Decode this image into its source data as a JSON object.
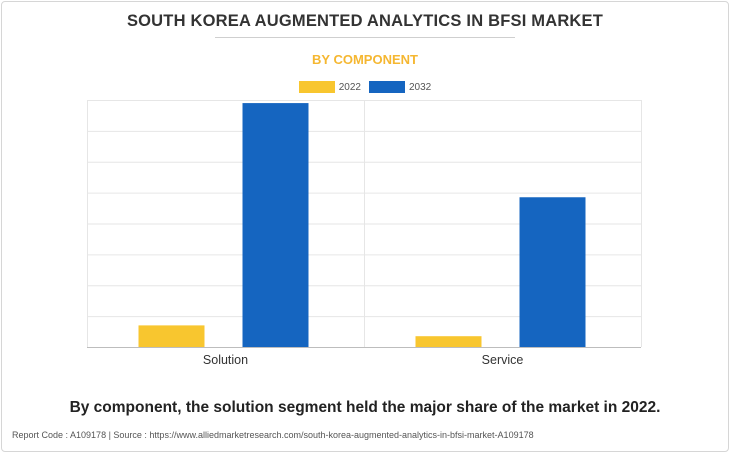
{
  "header": {
    "title": "SOUTH KOREA AUGMENTED ANALYTICS IN BFSI MARKET",
    "subtitle": "BY COMPONENT"
  },
  "chart_data": {
    "type": "bar",
    "categories": [
      "Solution",
      "Service"
    ],
    "series": [
      {
        "name": "2022",
        "color": "#f8c62f",
        "values": [
          7,
          3.5
        ]
      },
      {
        "name": "2032",
        "color": "#1565c0",
        "values": [
          79,
          48.5
        ]
      }
    ],
    "ylim": [
      0,
      80
    ],
    "grid": true,
    "legend_position": "top-center"
  },
  "caption": "By component, the solution segment held the major share of the market in 2022.",
  "footer": "Report Code : A109178  |  Source : https://www.alliedmarketresearch.com/south-korea-augmented-analytics-in-bfsi-market-A109178"
}
